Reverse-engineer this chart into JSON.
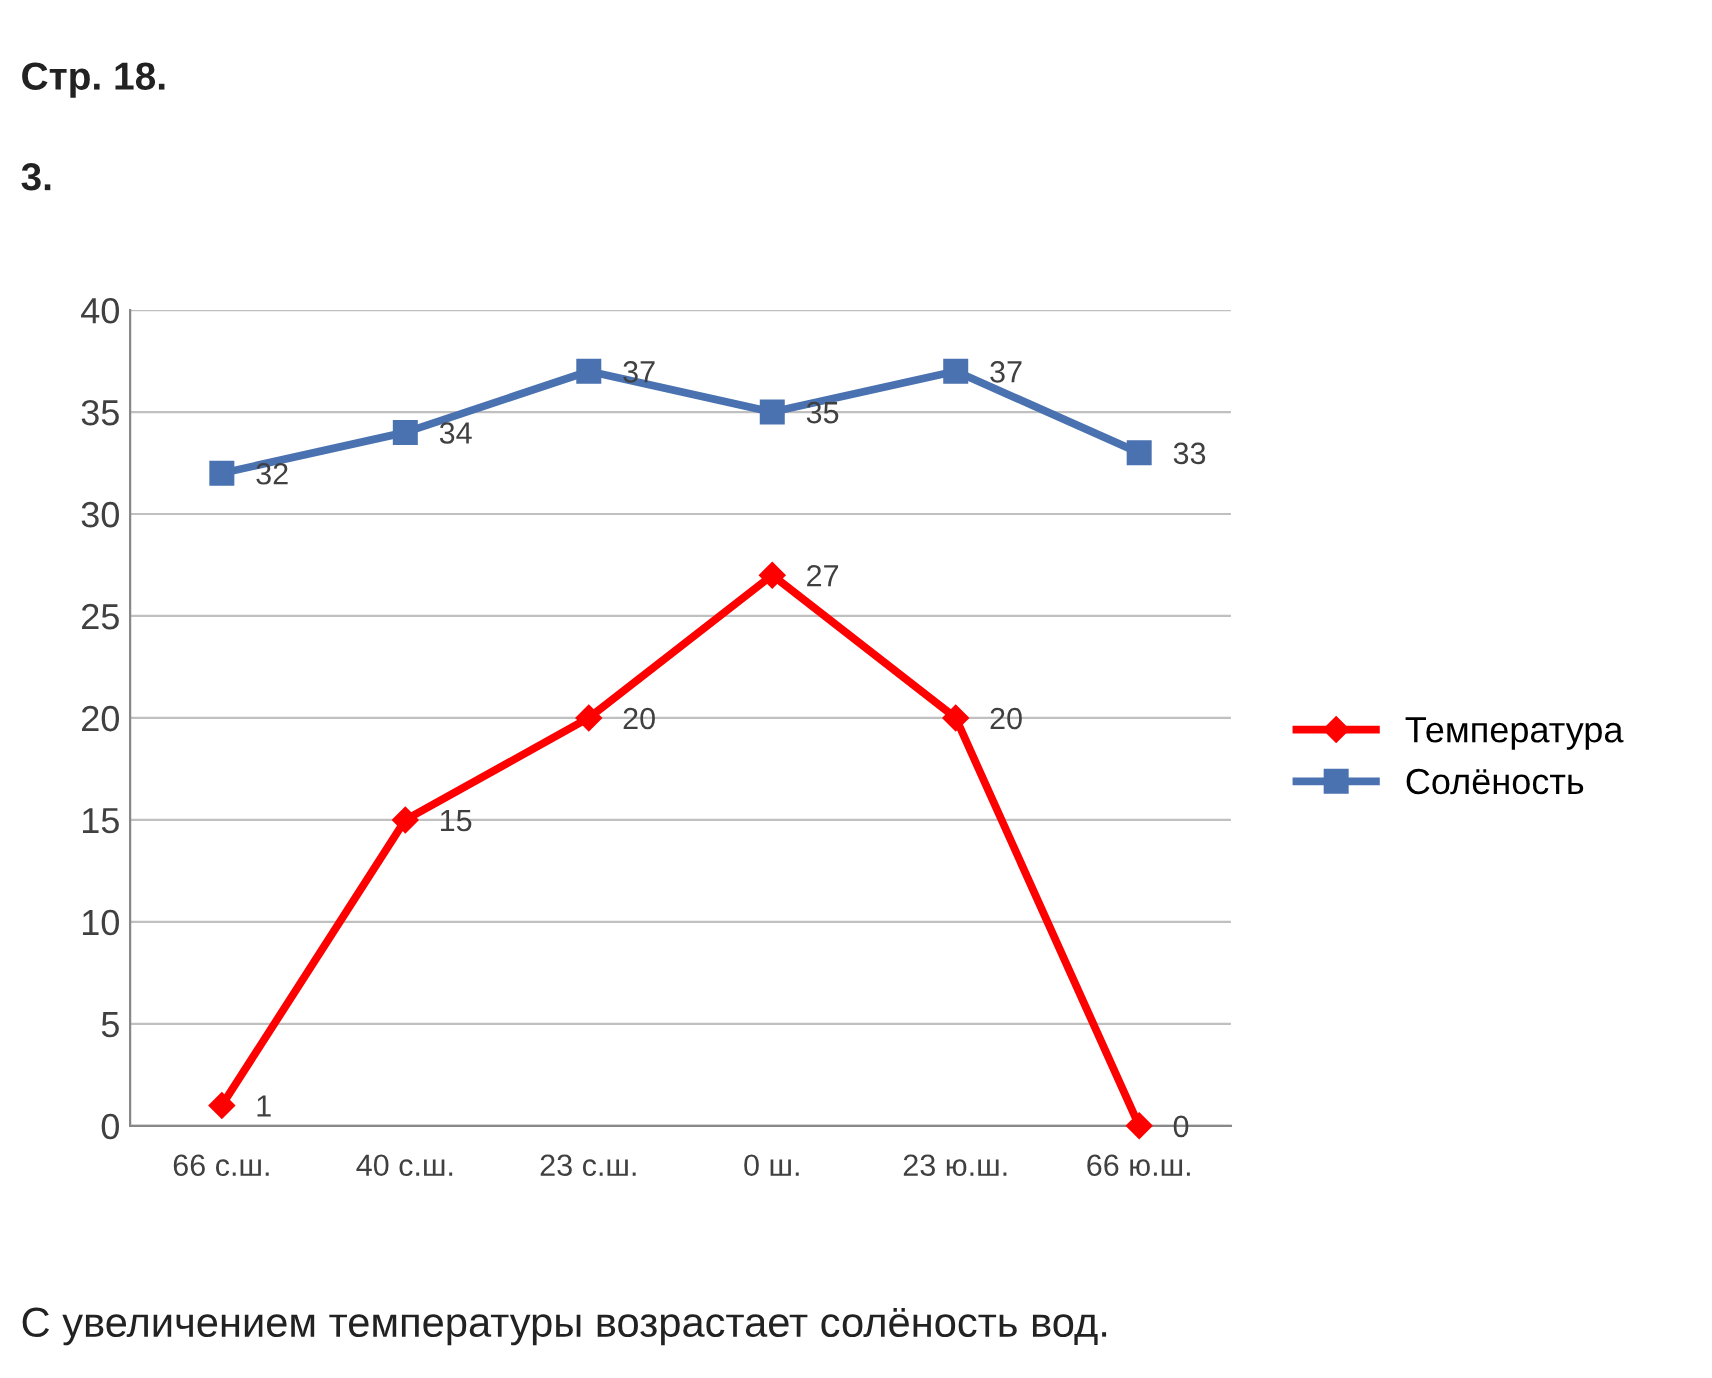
{
  "chart_data": {
    "type": "line",
    "title": "Стр. 18.",
    "subtitle": "3.",
    "categories": [
      "66 с.ш.",
      "40 с.ш.",
      "23 с.ш.",
      "0 ш.",
      "23 ю.ш.",
      "66 ю.ш."
    ],
    "series": [
      {
        "name": "Температура",
        "color": "#ff0000",
        "marker": "diamond",
        "values": [
          1,
          15,
          20,
          27,
          20,
          0
        ]
      },
      {
        "name": "Солёность",
        "color": "#4a72b0",
        "marker": "square",
        "values": [
          32,
          34,
          37,
          35,
          37,
          33
        ]
      }
    ],
    "ylim": [
      0,
      40
    ],
    "yticks": [
      0,
      5,
      10,
      15,
      20,
      25,
      30,
      35,
      40
    ],
    "grid": "y",
    "legend": "right",
    "data_labels": true,
    "annotations": [
      "С увеличением температуры возрастает солёность вод."
    ]
  }
}
